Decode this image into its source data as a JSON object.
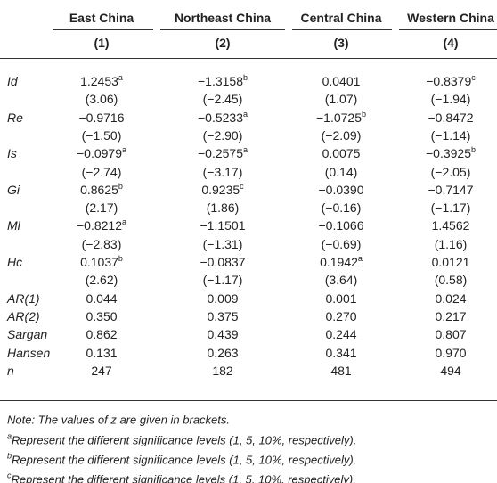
{
  "table": {
    "columns": [
      "East China",
      "Northeast China",
      "Central China",
      "Western China"
    ],
    "numbers": [
      "(1)",
      "(2)",
      "(3)",
      "(4)"
    ],
    "rows": [
      {
        "label": "Id",
        "cells": [
          {
            "value": "1.2453",
            "sup": "a"
          },
          {
            "value": "−1.3158",
            "sup": "b"
          },
          {
            "value": "0.0401"
          },
          {
            "value": "−0.8379",
            "sup": "c"
          }
        ]
      },
      {
        "cells": [
          {
            "value": "(3.06)"
          },
          {
            "value": "(−2.45)"
          },
          {
            "value": "(1.07)"
          },
          {
            "value": "(−1.94)"
          }
        ]
      },
      {
        "label": "Re",
        "cells": [
          {
            "value": "−0.9716"
          },
          {
            "value": "−0.5233",
            "sup": "a"
          },
          {
            "value": "−1.0725",
            "sup": "b"
          },
          {
            "value": "−0.8472"
          }
        ]
      },
      {
        "cells": [
          {
            "value": "(−1.50)"
          },
          {
            "value": "(−2.90)"
          },
          {
            "value": "(−2.09)"
          },
          {
            "value": "(−1.14)"
          }
        ]
      },
      {
        "label": "Is",
        "cells": [
          {
            "value": "−0.0979",
            "sup": "a"
          },
          {
            "value": "−0.2575",
            "sup": "a"
          },
          {
            "value": "0.0075"
          },
          {
            "value": "−0.3925",
            "sup": "b"
          }
        ]
      },
      {
        "cells": [
          {
            "value": "(−2.74)"
          },
          {
            "value": "(−3.17)"
          },
          {
            "value": "(0.14)"
          },
          {
            "value": "(−2.05)"
          }
        ]
      },
      {
        "label": "Gi",
        "cells": [
          {
            "value": "0.8625",
            "sup": "b"
          },
          {
            "value": "0.9235",
            "sup": "c"
          },
          {
            "value": "−0.0390"
          },
          {
            "value": "−0.7147"
          }
        ]
      },
      {
        "cells": [
          {
            "value": "(2.17)"
          },
          {
            "value": "(1.86)"
          },
          {
            "value": "(−0.16)"
          },
          {
            "value": "(−1.17)"
          }
        ]
      },
      {
        "label": "Ml",
        "cells": [
          {
            "value": "−0.8212",
            "sup": "a"
          },
          {
            "value": "−1.1501"
          },
          {
            "value": "−0.1066"
          },
          {
            "value": "1.4562"
          }
        ]
      },
      {
        "cells": [
          {
            "value": "(−2.83)"
          },
          {
            "value": "(−1.31)"
          },
          {
            "value": "(−0.69)"
          },
          {
            "value": "(1.16)"
          }
        ]
      },
      {
        "label": "Hc",
        "cells": [
          {
            "value": "0.1037",
            "sup": "b"
          },
          {
            "value": "−0.0837"
          },
          {
            "value": "0.1942",
            "sup": "a"
          },
          {
            "value": "0.0121"
          }
        ]
      },
      {
        "cells": [
          {
            "value": "(2.62)"
          },
          {
            "value": "(−1.17)"
          },
          {
            "value": "(3.64)"
          },
          {
            "value": "(0.58)"
          }
        ]
      },
      {
        "label": "AR(1)",
        "cells": [
          {
            "value": "0.044"
          },
          {
            "value": "0.009"
          },
          {
            "value": "0.001"
          },
          {
            "value": "0.024"
          }
        ]
      },
      {
        "label": "AR(2)",
        "cells": [
          {
            "value": "0.350"
          },
          {
            "value": "0.375"
          },
          {
            "value": "0.270"
          },
          {
            "value": "0.217"
          }
        ]
      },
      {
        "label": "Sargan",
        "cells": [
          {
            "value": "0.862"
          },
          {
            "value": "0.439"
          },
          {
            "value": "0.244"
          },
          {
            "value": "0.807"
          }
        ]
      },
      {
        "label": "Hansen",
        "cells": [
          {
            "value": "0.131"
          },
          {
            "value": "0.263"
          },
          {
            "value": "0.341"
          },
          {
            "value": "0.970"
          }
        ]
      },
      {
        "label": "n",
        "cells": [
          {
            "value": "247"
          },
          {
            "value": "182"
          },
          {
            "value": "481"
          },
          {
            "value": "494"
          }
        ]
      }
    ],
    "note": "Note: The values of z are given in brackets.",
    "footnotes": [
      {
        "sup": "a",
        "text": "Represent the different significance levels (1, 5, 10%, respectively)."
      },
      {
        "sup": "b",
        "text": "Represent the different significance levels (1, 5, 10%, respectively)."
      },
      {
        "sup": "c",
        "text": "Represent the different significance levels (1, 5, 10%, respectively)."
      }
    ]
  }
}
